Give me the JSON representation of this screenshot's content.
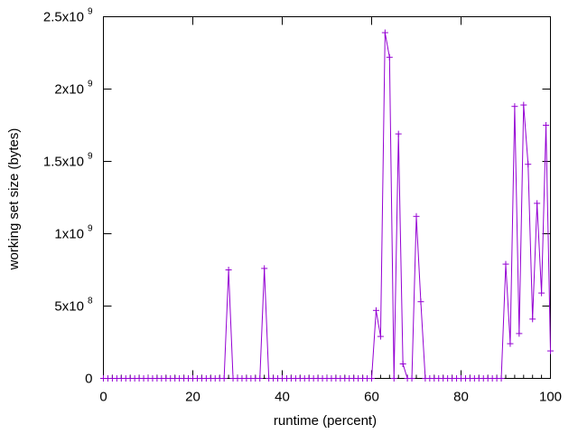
{
  "chart_data": {
    "type": "line",
    "title": "",
    "xlabel": "runtime (percent)",
    "ylabel": "working set size (bytes)",
    "xlim": [
      0,
      100
    ],
    "ylim": [
      0,
      2500000000
    ],
    "grid": false,
    "legend": "none",
    "marker": "plus",
    "series_color": "#9400d3",
    "xticks": [
      {
        "value": 0,
        "label": "0"
      },
      {
        "value": 20,
        "label": "20"
      },
      {
        "value": 40,
        "label": "40"
      },
      {
        "value": 60,
        "label": "60"
      },
      {
        "value": 80,
        "label": "80"
      },
      {
        "value": 100,
        "label": "100"
      }
    ],
    "yticks": [
      {
        "value": 0,
        "mantissa": "0",
        "exp": ""
      },
      {
        "value": 500000000,
        "mantissa": "5x10",
        "exp": "8"
      },
      {
        "value": 1000000000,
        "mantissa": "1x10",
        "exp": "9"
      },
      {
        "value": 1500000000,
        "mantissa": "1.5x10",
        "exp": "9"
      },
      {
        "value": 2000000000,
        "mantissa": "2x10",
        "exp": "9"
      },
      {
        "value": 2500000000,
        "mantissa": "2.5x10",
        "exp": "9"
      }
    ],
    "series": [
      {
        "x": [
          0,
          1,
          2,
          3,
          4,
          5,
          6,
          7,
          8,
          9,
          10,
          11,
          12,
          13,
          14,
          15,
          16,
          17,
          18,
          19,
          20,
          21,
          22,
          23,
          24,
          25,
          26,
          27,
          28,
          29,
          30,
          31,
          32,
          33,
          34,
          35,
          36,
          37,
          38,
          39,
          40,
          41,
          42,
          43,
          44,
          45,
          46,
          47,
          48,
          49,
          50,
          51,
          52,
          53,
          54,
          55,
          56,
          57,
          58,
          59,
          60,
          61,
          62,
          63,
          64,
          65,
          66,
          67,
          68,
          69,
          70,
          71,
          72,
          73,
          74,
          75,
          76,
          77,
          78,
          79,
          80,
          81,
          82,
          83,
          84,
          85,
          86,
          87,
          88,
          89,
          90,
          91,
          92,
          93,
          94,
          95,
          96,
          97,
          98,
          99,
          100
        ],
        "y": [
          0,
          0,
          0,
          0,
          0,
          0,
          0,
          0,
          0,
          0,
          0,
          0,
          0,
          0,
          0,
          0,
          0,
          0,
          0,
          0,
          0,
          0,
          0,
          0,
          0,
          0,
          0,
          0,
          750000000,
          0,
          0,
          0,
          0,
          0,
          0,
          0,
          760000000,
          0,
          0,
          0,
          0,
          0,
          0,
          0,
          0,
          0,
          0,
          0,
          0,
          0,
          0,
          0,
          0,
          0,
          0,
          0,
          0,
          0,
          0,
          0,
          0,
          470000000,
          290000000,
          2390000000,
          2220000000,
          0,
          1690000000,
          100000000,
          0,
          0,
          1120000000,
          530000000,
          0,
          0,
          0,
          0,
          0,
          0,
          0,
          0,
          0,
          0,
          0,
          0,
          0,
          0,
          0,
          0,
          0,
          0,
          790000000,
          240000000,
          1880000000,
          310000000,
          1890000000,
          1480000000,
          410000000,
          1210000000,
          590000000,
          1750000000,
          190000000
        ]
      }
    ]
  }
}
